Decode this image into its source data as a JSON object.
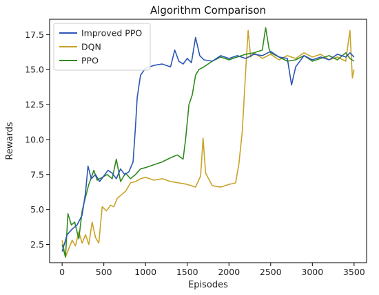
{
  "chart_data": {
    "type": "line",
    "title": "Algorithm Comparison",
    "xlabel": "Episodes",
    "ylabel": "Rewards",
    "xlim": [
      -150,
      3650
    ],
    "ylim": [
      1.2,
      18.6
    ],
    "xticks": [
      0,
      500,
      1000,
      1500,
      2000,
      2500,
      3000,
      3500
    ],
    "yticks": [
      2.5,
      5.0,
      7.5,
      10.0,
      12.5,
      15.0,
      17.5
    ],
    "ytick_labels": [
      "2.5",
      "5.0",
      "7.5",
      "10.0",
      "12.5",
      "15.0",
      "17.5"
    ],
    "legend_position": "top-left",
    "grid": false,
    "series": [
      {
        "name": "Improved PPO",
        "color": "#2b55b5",
        "points": [
          [
            0,
            2.0
          ],
          [
            60,
            3.2
          ],
          [
            120,
            3.6
          ],
          [
            180,
            3.9
          ],
          [
            240,
            4.6
          ],
          [
            280,
            6.2
          ],
          [
            310,
            8.1
          ],
          [
            350,
            7.2
          ],
          [
            400,
            7.5
          ],
          [
            450,
            7.0
          ],
          [
            500,
            7.4
          ],
          [
            550,
            7.8
          ],
          [
            600,
            7.6
          ],
          [
            650,
            7.2
          ],
          [
            700,
            7.9
          ],
          [
            750,
            7.5
          ],
          [
            800,
            7.7
          ],
          [
            850,
            8.4
          ],
          [
            880,
            11.0
          ],
          [
            900,
            13.0
          ],
          [
            940,
            14.6
          ],
          [
            1000,
            15.1
          ],
          [
            1100,
            15.3
          ],
          [
            1200,
            15.4
          ],
          [
            1300,
            15.2
          ],
          [
            1350,
            16.4
          ],
          [
            1400,
            15.6
          ],
          [
            1450,
            15.4
          ],
          [
            1500,
            15.8
          ],
          [
            1550,
            15.5
          ],
          [
            1600,
            17.3
          ],
          [
            1650,
            16.0
          ],
          [
            1700,
            15.7
          ],
          [
            1800,
            15.6
          ],
          [
            1900,
            16.0
          ],
          [
            2000,
            15.8
          ],
          [
            2100,
            16.0
          ],
          [
            2200,
            15.8
          ],
          [
            2300,
            16.1
          ],
          [
            2400,
            16.0
          ],
          [
            2500,
            16.3
          ],
          [
            2600,
            15.9
          ],
          [
            2700,
            15.8
          ],
          [
            2750,
            13.9
          ],
          [
            2800,
            15.2
          ],
          [
            2900,
            16.0
          ],
          [
            3000,
            15.7
          ],
          [
            3100,
            15.9
          ],
          [
            3200,
            15.7
          ],
          [
            3300,
            16.1
          ],
          [
            3400,
            15.9
          ],
          [
            3450,
            16.2
          ],
          [
            3500,
            15.9
          ]
        ]
      },
      {
        "name": "DQN",
        "color": "#c9a227",
        "points": [
          [
            0,
            2.8
          ],
          [
            40,
            1.6
          ],
          [
            80,
            2.2
          ],
          [
            120,
            2.8
          ],
          [
            160,
            2.4
          ],
          [
            200,
            3.4
          ],
          [
            240,
            2.6
          ],
          [
            280,
            3.2
          ],
          [
            320,
            2.5
          ],
          [
            360,
            4.1
          ],
          [
            400,
            3.0
          ],
          [
            440,
            2.6
          ],
          [
            480,
            5.2
          ],
          [
            530,
            4.9
          ],
          [
            580,
            5.3
          ],
          [
            620,
            5.2
          ],
          [
            660,
            5.8
          ],
          [
            700,
            6.0
          ],
          [
            760,
            6.3
          ],
          [
            820,
            6.9
          ],
          [
            880,
            7.0
          ],
          [
            940,
            7.2
          ],
          [
            1000,
            7.3
          ],
          [
            1100,
            7.1
          ],
          [
            1200,
            7.2
          ],
          [
            1300,
            7.0
          ],
          [
            1400,
            6.9
          ],
          [
            1500,
            6.8
          ],
          [
            1600,
            6.6
          ],
          [
            1660,
            7.4
          ],
          [
            1690,
            10.1
          ],
          [
            1720,
            7.6
          ],
          [
            1800,
            6.7
          ],
          [
            1900,
            6.6
          ],
          [
            2000,
            6.8
          ],
          [
            2080,
            6.9
          ],
          [
            2120,
            8.3
          ],
          [
            2160,
            10.6
          ],
          [
            2200,
            14.9
          ],
          [
            2230,
            17.8
          ],
          [
            2260,
            15.9
          ],
          [
            2300,
            16.2
          ],
          [
            2400,
            15.8
          ],
          [
            2500,
            16.1
          ],
          [
            2600,
            15.7
          ],
          [
            2700,
            16.0
          ],
          [
            2800,
            15.8
          ],
          [
            2900,
            16.2
          ],
          [
            3000,
            15.9
          ],
          [
            3100,
            16.1
          ],
          [
            3200,
            15.7
          ],
          [
            3300,
            15.9
          ],
          [
            3400,
            15.6
          ],
          [
            3450,
            17.8
          ],
          [
            3480,
            14.4
          ],
          [
            3500,
            15.0
          ]
        ]
      },
      {
        "name": "PPO",
        "color": "#2f8a1f",
        "points": [
          [
            0,
            2.5
          ],
          [
            40,
            1.6
          ],
          [
            70,
            4.7
          ],
          [
            110,
            3.9
          ],
          [
            150,
            4.1
          ],
          [
            200,
            2.9
          ],
          [
            240,
            4.9
          ],
          [
            280,
            5.9
          ],
          [
            320,
            6.8
          ],
          [
            380,
            7.8
          ],
          [
            420,
            7.1
          ],
          [
            480,
            7.3
          ],
          [
            540,
            7.5
          ],
          [
            600,
            7.2
          ],
          [
            650,
            8.6
          ],
          [
            700,
            7.0
          ],
          [
            760,
            7.6
          ],
          [
            820,
            7.2
          ],
          [
            880,
            7.5
          ],
          [
            940,
            7.9
          ],
          [
            1000,
            8.0
          ],
          [
            1100,
            8.2
          ],
          [
            1200,
            8.4
          ],
          [
            1300,
            8.7
          ],
          [
            1380,
            8.9
          ],
          [
            1450,
            8.6
          ],
          [
            1480,
            10.0
          ],
          [
            1520,
            12.5
          ],
          [
            1560,
            13.2
          ],
          [
            1600,
            14.6
          ],
          [
            1640,
            15.0
          ],
          [
            1700,
            15.2
          ],
          [
            1800,
            15.6
          ],
          [
            1900,
            15.9
          ],
          [
            2000,
            15.7
          ],
          [
            2100,
            15.9
          ],
          [
            2200,
            16.1
          ],
          [
            2300,
            16.2
          ],
          [
            2400,
            16.4
          ],
          [
            2440,
            18.0
          ],
          [
            2480,
            16.5
          ],
          [
            2500,
            16.2
          ],
          [
            2600,
            15.9
          ],
          [
            2700,
            15.6
          ],
          [
            2800,
            15.7
          ],
          [
            2900,
            16.0
          ],
          [
            3000,
            15.6
          ],
          [
            3100,
            15.8
          ],
          [
            3200,
            16.0
          ],
          [
            3300,
            15.7
          ],
          [
            3400,
            16.2
          ],
          [
            3450,
            15.8
          ],
          [
            3500,
            15.6
          ]
        ]
      }
    ]
  }
}
